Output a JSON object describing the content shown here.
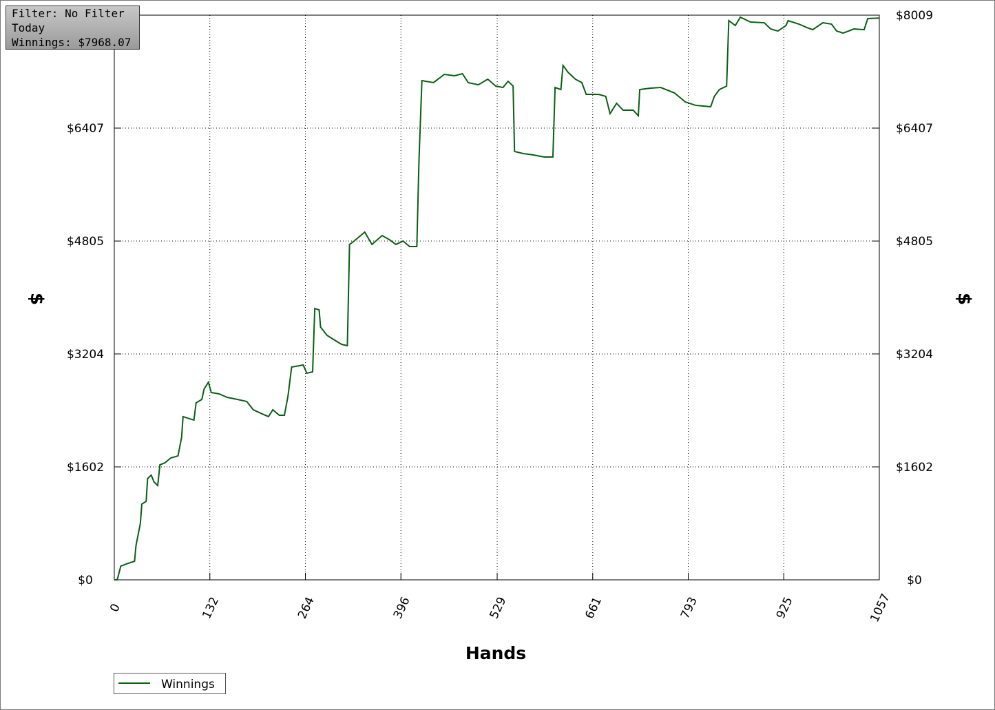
{
  "chart_data": {
    "type": "line",
    "annotations": [
      "Filter: No Filter",
      "Today",
      "Winnings: $7968.07"
    ],
    "xlabel": "Hands",
    "ylabel": "$",
    "y2label": "$",
    "xlim": [
      0,
      1057
    ],
    "xticks": [
      0,
      132,
      264,
      396,
      529,
      661,
      793,
      925,
      1057
    ],
    "ylim": [
      0,
      8009
    ],
    "yticks": [
      {
        "value": 0,
        "label": "$0"
      },
      {
        "value": 1602,
        "label": "$1602"
      },
      {
        "value": 3204,
        "label": "$3204"
      },
      {
        "value": 4805,
        "label": "$4805"
      },
      {
        "value": 6407,
        "label": "$6407"
      },
      {
        "value": 8009,
        "label": "$8009"
      }
    ],
    "y2lim": [
      0,
      8009
    ],
    "y2ticks": [
      {
        "value": 0,
        "label": "$0"
      },
      {
        "value": 1602,
        "label": "$1602"
      },
      {
        "value": 3204,
        "label": "$3204"
      },
      {
        "value": 4805,
        "label": "$4805"
      },
      {
        "value": 6407,
        "label": "$6407"
      },
      {
        "value": 8009,
        "label": "$8009"
      }
    ],
    "grid": true,
    "legend": "bottom-left",
    "x": [
      0,
      4,
      9,
      19,
      28,
      30,
      36,
      38,
      44,
      46,
      51,
      55,
      60,
      63,
      70,
      78,
      88,
      93,
      95,
      104,
      110,
      113,
      121,
      124,
      130,
      134,
      145,
      156,
      170,
      183,
      192,
      202,
      213,
      219,
      228,
      235,
      240,
      245,
      261,
      266,
      274,
      277,
      283,
      285,
      294,
      303,
      314,
      322,
      325,
      329,
      337,
      346,
      356,
      370,
      380,
      389,
      399,
      408,
      418,
      421,
      425,
      441,
      456,
      470,
      481,
      489,
      503,
      516,
      527,
      537,
      544,
      551,
      553,
      565,
      579,
      594,
      606,
      609,
      617,
      620,
      627,
      637,
      646,
      652,
      669,
      679,
      685,
      694,
      703,
      717,
      724,
      726,
      741,
      755,
      774,
      789,
      803,
      824,
      829,
      836,
      846,
      849,
      858,
      865,
      879,
      898,
      907,
      917,
      928,
      931,
      946,
      957,
      965,
      979,
      991,
      998,
      1007,
      1022,
      1036,
      1041,
      1057
    ],
    "series": [
      {
        "name": "Winnings",
        "color": "#0a5e14",
        "values": [
          0,
          0,
          195,
          234,
          264,
          488,
          801,
          1074,
          1113,
          1436,
          1485,
          1387,
          1338,
          1631,
          1660,
          1729,
          1758,
          2022,
          2315,
          2285,
          2266,
          2510,
          2559,
          2705,
          2803,
          2657,
          2637,
          2588,
          2559,
          2530,
          2412,
          2364,
          2315,
          2412,
          2334,
          2334,
          2608,
          3018,
          3047,
          2930,
          2950,
          3848,
          3829,
          3584,
          3467,
          3409,
          3340,
          3321,
          4757,
          4786,
          4854,
          4932,
          4757,
          4883,
          4825,
          4757,
          4805,
          4727,
          4727,
          5958,
          7081,
          7052,
          7169,
          7150,
          7179,
          7052,
          7022,
          7101,
          7003,
          6983,
          7071,
          7003,
          6075,
          6046,
          6026,
          5997,
          5997,
          6983,
          6954,
          7296,
          7198,
          7101,
          7052,
          6886,
          6886,
          6857,
          6612,
          6759,
          6661,
          6661,
          6583,
          6954,
          6974,
          6983,
          6905,
          6778,
          6730,
          6710,
          6856,
          6954,
          7003,
          7931,
          7862,
          7980,
          7911,
          7901,
          7813,
          7784,
          7862,
          7931,
          7882,
          7833,
          7803,
          7901,
          7882,
          7784,
          7755,
          7813,
          7803,
          7960,
          7968
        ]
      }
    ]
  }
}
